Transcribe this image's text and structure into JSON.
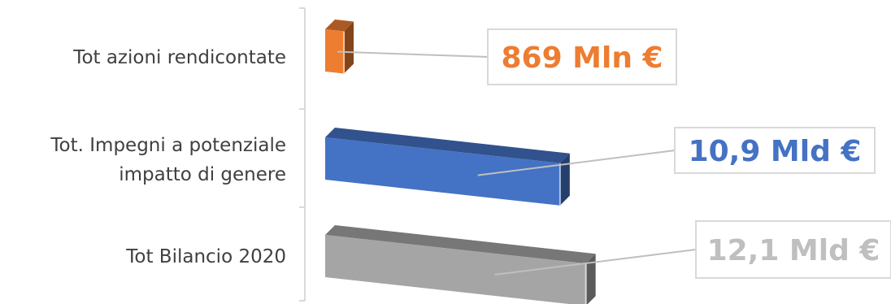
{
  "chart_data": {
    "type": "bar",
    "orientation": "horizontal",
    "style": "3d",
    "title": "",
    "xlabel": "",
    "ylabel": "",
    "grid": false,
    "legend": "none",
    "categories": [
      "Tot azioni rendicontate",
      "Tot. Impegni a potenziale impatto di genere",
      "Tot Bilancio 2020"
    ],
    "category_lines": [
      [
        "Tot azioni rendicontate"
      ],
      [
        "Tot. Impegni a potenziale",
        "impatto di genere"
      ],
      [
        "Tot Bilancio 2020"
      ]
    ],
    "values": [
      0.869,
      10.9,
      12.1
    ],
    "value_unit": "Mld €",
    "data_labels": [
      "869 Mln €",
      "10,9 Mld €",
      "12,1 Mld €"
    ],
    "colors": {
      "bars": [
        "#ED7D31",
        "#4472C4",
        "#A5A5A5"
      ],
      "labels": [
        "#ED7D31",
        "#4472C4",
        "#BFBFBF"
      ],
      "axis": "#D9D9D9",
      "leader": "#BFBFBF"
    }
  }
}
